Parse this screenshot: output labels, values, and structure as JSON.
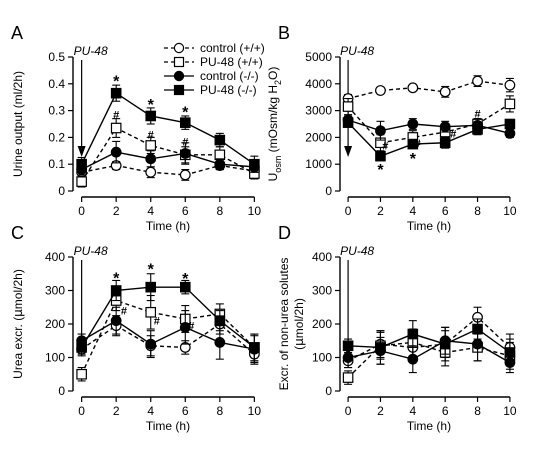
{
  "chart_data": [
    {
      "type": "line",
      "panel_letter": "A",
      "ylabel": "Urine output (ml/2h)",
      "xlabel": "Time (h)",
      "x_ticks": [
        0,
        2,
        4,
        6,
        8,
        10
      ],
      "y_ticks": [
        0,
        0.1,
        0.2,
        0.3,
        0.4,
        0.5
      ],
      "y_tick_labels": [
        "0",
        "0.1",
        "0.2",
        "0.3",
        "0.4",
        "0.5"
      ],
      "xlim": [
        -0.5,
        10.5
      ],
      "ylim": [
        0,
        0.5
      ],
      "annotation": "PU-48",
      "legend": {
        "placement": "top-right",
        "entries": [
          "control (+/+)",
          "PU-48 (+/+)",
          "control (-/-)",
          "PU-48 (-/-)"
        ]
      },
      "series": [
        {
          "name": "control (+/+)",
          "marker": "open-circle",
          "dash": "dashed",
          "x": [
            0,
            2,
            4,
            6,
            8,
            10
          ],
          "y": [
            0.07,
            0.095,
            0.07,
            0.06,
            0.095,
            0.075
          ],
          "err": [
            0.015,
            0.015,
            0.02,
            0.02,
            0.015,
            0.02
          ]
        },
        {
          "name": "PU-48 (+/+)",
          "marker": "open-square",
          "dash": "dashed",
          "x": [
            0,
            2,
            4,
            6,
            8,
            10
          ],
          "y": [
            0.035,
            0.235,
            0.17,
            0.135,
            0.135,
            0.065
          ],
          "err": [
            0.02,
            0.035,
            0.03,
            0.03,
            0.03,
            0.02
          ]
        },
        {
          "name": "control (-/-)",
          "marker": "filled-circle",
          "dash": "solid",
          "x": [
            0,
            2,
            4,
            6,
            8,
            10
          ],
          "y": [
            0.08,
            0.145,
            0.12,
            0.14,
            0.1,
            0.09
          ],
          "err": [
            0.02,
            0.04,
            0.03,
            0.04,
            0.02,
            0.02
          ]
        },
        {
          "name": "PU-48 (-/-)",
          "marker": "filled-square",
          "dash": "solid",
          "x": [
            0,
            2,
            4,
            6,
            8,
            10
          ],
          "y": [
            0.1,
            0.365,
            0.28,
            0.255,
            0.19,
            0.1
          ],
          "err": [
            0.025,
            0.03,
            0.03,
            0.025,
            0.025,
            0.03
          ]
        }
      ],
      "sig_marks": [
        {
          "symbol": "*",
          "x": 2,
          "y": 0.42
        },
        {
          "symbol": "*",
          "x": 4,
          "y": 0.333
        },
        {
          "symbol": "*",
          "x": 6,
          "y": 0.305
        },
        {
          "symbol": "#",
          "x": 2,
          "y": 0.285
        },
        {
          "symbol": "#",
          "x": 4,
          "y": 0.21
        },
        {
          "symbol": "#",
          "x": 6,
          "y": 0.185
        }
      ]
    },
    {
      "type": "line",
      "panel_letter": "B",
      "ylabel_main": "U",
      "ylabel_sub": "osm",
      "ylabel_rest": " (mOsm/kg H",
      "ylabel_sub2": "2",
      "ylabel_end": "O)",
      "xlabel": "Time (h)",
      "x_ticks": [
        0,
        2,
        4,
        6,
        8,
        10
      ],
      "y_ticks": [
        0,
        1000,
        2000,
        3000,
        4000,
        5000
      ],
      "y_tick_labels": [
        "0",
        "1000",
        "2000",
        "3000",
        "4000",
        "5000"
      ],
      "xlim": [
        -0.5,
        10.5
      ],
      "ylim": [
        0,
        5000
      ],
      "annotation": "PU-48",
      "series": [
        {
          "name": "control (+/+)",
          "marker": "open-circle",
          "dash": "dashed",
          "x": [
            0,
            2,
            4,
            6,
            8,
            10
          ],
          "y": [
            3450,
            3750,
            3850,
            3700,
            4100,
            3950
          ],
          "err": [
            150,
            100,
            100,
            200,
            200,
            250
          ]
        },
        {
          "name": "PU-48 (+/+)",
          "marker": "open-square",
          "dash": "dashed",
          "x": [
            0,
            2,
            4,
            6,
            8,
            10
          ],
          "y": [
            3150,
            1800,
            2000,
            2200,
            2500,
            3250
          ],
          "err": [
            300,
            300,
            250,
            250,
            200,
            300
          ]
        },
        {
          "name": "control (-/-)",
          "marker": "filled-circle",
          "dash": "solid",
          "x": [
            0,
            2,
            4,
            6,
            8,
            10
          ],
          "y": [
            2650,
            2250,
            2500,
            2400,
            2450,
            2150
          ],
          "err": [
            150,
            350,
            200,
            200,
            250,
            150
          ]
        },
        {
          "name": "PU-48 (-/-)",
          "marker": "filled-square",
          "dash": "solid",
          "x": [
            0,
            2,
            4,
            6,
            8,
            10
          ],
          "y": [
            2550,
            1300,
            1750,
            1800,
            2300,
            2500
          ],
          "err": [
            150,
            150,
            150,
            200,
            200,
            150
          ]
        }
      ],
      "sig_marks": [
        {
          "symbol": "*",
          "x": 2,
          "y": 900
        },
        {
          "symbol": "*",
          "x": 4,
          "y": 1300
        },
        {
          "symbol": "#",
          "x": 2.3,
          "y": 1700
        },
        {
          "symbol": "#",
          "x": 4.3,
          "y": 1800
        },
        {
          "symbol": "#",
          "x": 6.5,
          "y": 2150
        },
        {
          "symbol": "#",
          "x": 8,
          "y": 2900
        }
      ]
    },
    {
      "type": "line",
      "panel_letter": "C",
      "ylabel_main": "Urea excr. (",
      "ylabel_mu": "μ",
      "ylabel_end": "mol/2h)",
      "xlabel": "Time (h)",
      "x_ticks": [
        0,
        2,
        4,
        6,
        8,
        10
      ],
      "y_ticks": [
        0,
        100,
        200,
        300,
        400
      ],
      "y_tick_labels": [
        "0",
        "100",
        "200",
        "300",
        "400"
      ],
      "xlim": [
        -0.5,
        10.5
      ],
      "ylim": [
        0,
        400
      ],
      "annotation": "PU-48",
      "series": [
        {
          "name": "control (+/+)",
          "marker": "open-circle",
          "dash": "dashed",
          "x": [
            0,
            2,
            4,
            6,
            8,
            10
          ],
          "y": [
            125,
            195,
            135,
            130,
            200,
            110
          ],
          "err": [
            20,
            30,
            30,
            20,
            30,
            30
          ]
        },
        {
          "name": "PU-48 (+/+)",
          "marker": "open-square",
          "dash": "dashed",
          "x": [
            0,
            2,
            4,
            6,
            8,
            10
          ],
          "y": [
            50,
            270,
            235,
            215,
            230,
            130
          ],
          "err": [
            20,
            30,
            50,
            40,
            30,
            40
          ]
        },
        {
          "name": "control (-/-)",
          "marker": "filled-circle",
          "dash": "solid",
          "x": [
            0,
            2,
            4,
            6,
            8,
            10
          ],
          "y": [
            150,
            210,
            140,
            190,
            145,
            125
          ],
          "err": [
            20,
            40,
            40,
            50,
            50,
            40
          ]
        },
        {
          "name": "PU-48 (-/-)",
          "marker": "filled-square",
          "dash": "solid",
          "x": [
            0,
            2,
            4,
            6,
            8,
            10
          ],
          "y": [
            130,
            300,
            310,
            310,
            210,
            130
          ],
          "err": [
            20,
            30,
            40,
            20,
            30,
            40
          ]
        }
      ],
      "sig_marks": [
        {
          "symbol": "*",
          "x": 2,
          "y": 345
        },
        {
          "symbol": "*",
          "x": 4,
          "y": 372
        },
        {
          "symbol": "*",
          "x": 6,
          "y": 343
        },
        {
          "symbol": "#",
          "x": 2.45,
          "y": 240
        },
        {
          "symbol": "#",
          "x": 4.35,
          "y": 210
        },
        {
          "symbol": "#",
          "x": 6.35,
          "y": 195
        }
      ]
    },
    {
      "type": "line",
      "panel_letter": "D",
      "ylabel_line1": "Excr. of non-urea solutes",
      "ylabel_line2_pre": "(",
      "ylabel_mu": "μ",
      "ylabel_line2_end": "mol/2h)",
      "xlabel": "Time (h)",
      "x_ticks": [
        0,
        2,
        4,
        6,
        8,
        10
      ],
      "y_ticks": [
        0,
        100,
        200,
        300,
        400
      ],
      "y_tick_labels": [
        "0",
        "100",
        "200",
        "300",
        "400"
      ],
      "xlim": [
        -0.5,
        10.5
      ],
      "ylim": [
        0,
        400
      ],
      "annotation": "PU-48",
      "series": [
        {
          "name": "control (+/+)",
          "marker": "open-circle",
          "dash": "dashed",
          "x": [
            0,
            2,
            4,
            6,
            8,
            10
          ],
          "y": [
            90,
            140,
            130,
            140,
            220,
            130
          ],
          "err": [
            20,
            40,
            40,
            40,
            30,
            40
          ]
        },
        {
          "name": "PU-48 (+/+)",
          "marker": "open-square",
          "dash": "dashed",
          "x": [
            0,
            2,
            4,
            6,
            8,
            10
          ],
          "y": [
            40,
            135,
            145,
            115,
            130,
            105
          ],
          "err": [
            20,
            40,
            40,
            40,
            40,
            40
          ]
        },
        {
          "name": "control (-/-)",
          "marker": "filled-circle",
          "dash": "solid",
          "x": [
            0,
            2,
            4,
            6,
            8,
            10
          ],
          "y": [
            100,
            120,
            95,
            150,
            140,
            85
          ],
          "err": [
            30,
            40,
            40,
            40,
            50,
            30
          ]
        },
        {
          "name": "PU-48 (-/-)",
          "marker": "filled-square",
          "dash": "solid",
          "x": [
            0,
            2,
            4,
            6,
            8,
            10
          ],
          "y": [
            135,
            130,
            170,
            140,
            185,
            115
          ],
          "err": [
            20,
            50,
            40,
            50,
            30,
            40
          ]
        }
      ],
      "sig_marks": []
    }
  ]
}
